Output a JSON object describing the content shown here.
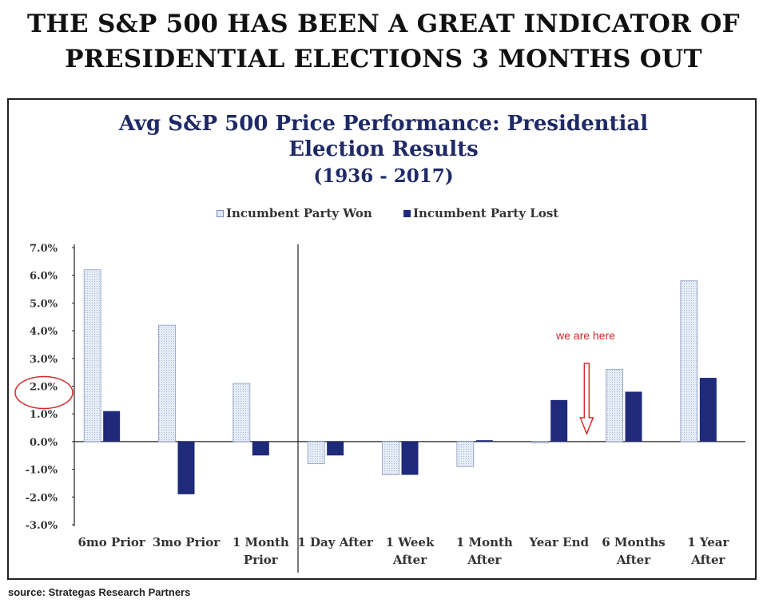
{
  "headline": {
    "line1": "THE S&P 500 HAS BEEN A GREAT INDICATOR OF",
    "line2": "PRESIDENTIAL ELECTIONS 3 MONTHS OUT"
  },
  "annotation": {
    "text": "we are here",
    "color": "#d42a2a",
    "highlighted_tick": "2.0%"
  },
  "source": "source: Strategas Research Partners",
  "colors": {
    "won": "#dfe6f3",
    "won_border": "#8a9bc0",
    "lost": "#1f2a7a",
    "title": "#1f2a66",
    "annotation": "#d42a2a"
  },
  "chart_data": {
    "type": "bar",
    "title_line1": "Avg S&P 500 Price Performance: Presidential",
    "title_line2": "Election Results",
    "title_line3": "(1936 - 2017)",
    "categories": [
      [
        "6mo Prior"
      ],
      [
        "3mo Prior"
      ],
      [
        "1 Month",
        "Prior"
      ],
      [
        "1 Day After"
      ],
      [
        "1 Week",
        "After"
      ],
      [
        "1 Month",
        "After"
      ],
      [
        "Year End"
      ],
      [
        "6 Months",
        "After"
      ],
      [
        "1 Year",
        "After"
      ]
    ],
    "series": [
      {
        "name": "Incumbent Party Won",
        "values": [
          6.2,
          4.2,
          2.1,
          -0.8,
          -1.2,
          -0.9,
          -0.05,
          2.6,
          5.8
        ]
      },
      {
        "name": "Incumbent Party Lost",
        "values": [
          1.1,
          -1.9,
          -0.5,
          -0.5,
          -1.2,
          0.05,
          1.5,
          1.8,
          2.3
        ]
      }
    ],
    "yticks": [
      "7.0%",
      "6.0%",
      "5.0%",
      "4.0%",
      "3.0%",
      "2.0%",
      "1.0%",
      "0.0%",
      "-1.0%",
      "-2.0%",
      "-3.0%"
    ],
    "ylim": [
      -3,
      7
    ],
    "legend_position": "top-center",
    "divider_after_category": 2
  }
}
